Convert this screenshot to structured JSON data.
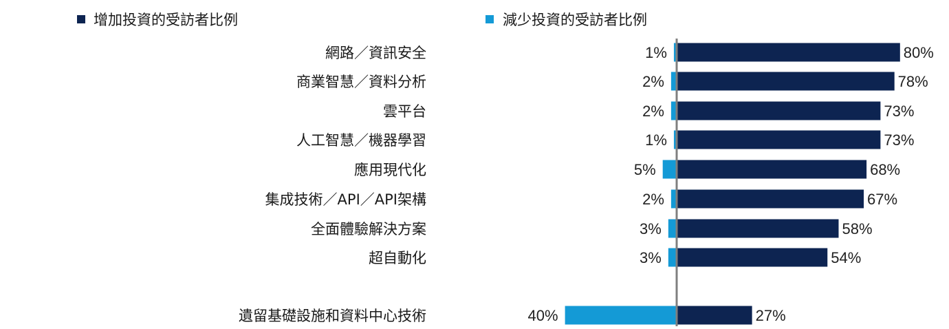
{
  "chart_data": {
    "type": "bar",
    "orientation": "horizontal-diverging",
    "categories": [
      "網路／資訊安全",
      "商業智慧／資料分析",
      "雲平台",
      "人工智慧／機器學習",
      "應用現代化",
      "集成技術／API／API架構",
      "全面體驗解決方案",
      "超自動化",
      "遺留基礎設施和資料中心技術"
    ],
    "series": [
      {
        "name": "增加投資的受訪者比例",
        "color": "#0d2451",
        "values": [
          80,
          78,
          73,
          73,
          68,
          67,
          58,
          54,
          27
        ],
        "labels": [
          "80%",
          "78%",
          "73%",
          "73%",
          "68%",
          "67%",
          "58%",
          "54%",
          "27%"
        ]
      },
      {
        "name": "減少投資的受訪者比例",
        "color": "#149ad6",
        "values": [
          1,
          2,
          2,
          1,
          5,
          2,
          3,
          3,
          40
        ],
        "labels": [
          "1%",
          "2%",
          "2%",
          "1%",
          "5%",
          "2%",
          "3%",
          "3%",
          "40%"
        ]
      }
    ],
    "unit": "%",
    "axis_color": "#7f7f7f",
    "legend_position": "top",
    "grid": false
  }
}
